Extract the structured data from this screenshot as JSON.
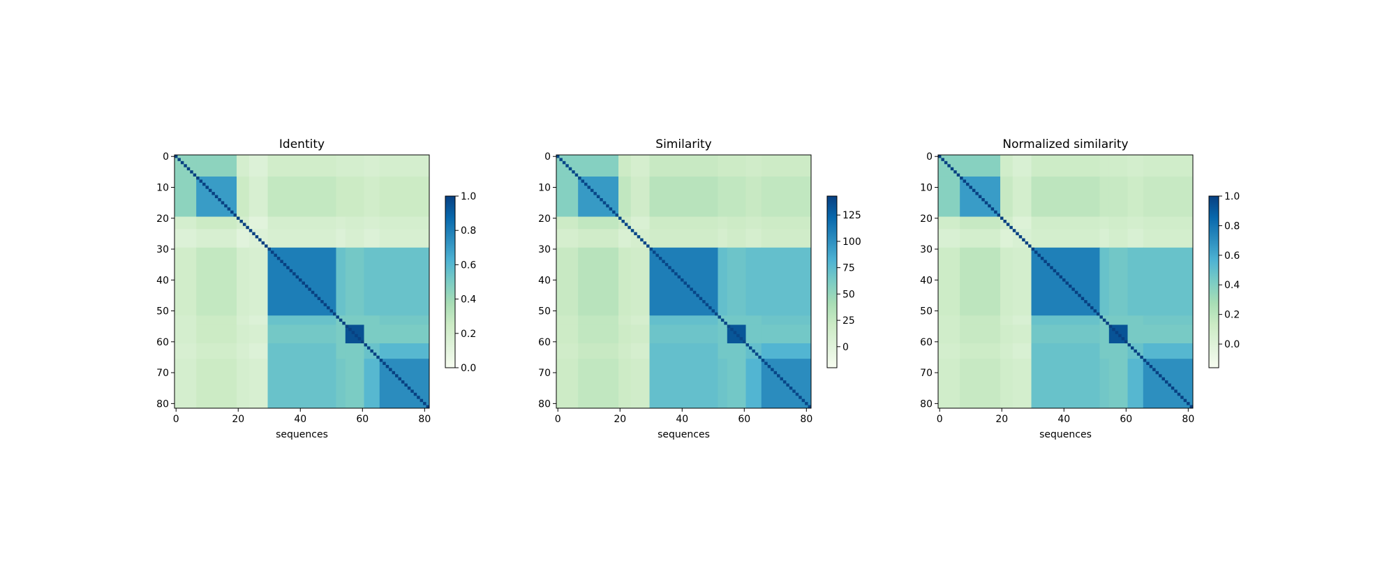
{
  "chart_data": [
    {
      "type": "heatmap",
      "title": "Identity",
      "xlabel": "sequences",
      "colormap": "GnBu",
      "xlim": [
        -0.5,
        81.5
      ],
      "ylim": [
        81.5,
        -0.5
      ],
      "xticks": [
        0,
        20,
        40,
        60,
        80
      ],
      "yticks": [
        0,
        10,
        20,
        30,
        40,
        50,
        60,
        70,
        80
      ],
      "bins": [
        -0.5,
        6.5,
        19.5,
        23.5,
        29.5,
        51.5,
        54.5,
        60.5,
        65.5,
        81.5
      ],
      "values": [
        [
          0.45,
          0.45,
          0.2,
          0.15,
          0.22,
          0.2,
          0.2,
          0.18,
          0.2
        ],
        [
          0.45,
          0.7,
          0.25,
          0.18,
          0.28,
          0.25,
          0.25,
          0.22,
          0.25
        ],
        [
          0.2,
          0.25,
          0.2,
          0.12,
          0.2,
          0.18,
          0.2,
          0.18,
          0.2
        ],
        [
          0.15,
          0.18,
          0.12,
          0.15,
          0.18,
          0.15,
          0.18,
          0.15,
          0.18
        ],
        [
          0.22,
          0.28,
          0.2,
          0.18,
          0.8,
          0.55,
          0.52,
          0.55,
          0.55
        ],
        [
          0.2,
          0.25,
          0.18,
          0.15,
          0.55,
          0.5,
          0.5,
          0.5,
          0.52
        ],
        [
          0.2,
          0.25,
          0.2,
          0.18,
          0.52,
          0.5,
          0.95,
          0.5,
          0.5
        ],
        [
          0.18,
          0.22,
          0.18,
          0.15,
          0.55,
          0.5,
          0.5,
          0.55,
          0.6
        ],
        [
          0.2,
          0.25,
          0.2,
          0.18,
          0.55,
          0.52,
          0.5,
          0.6,
          0.75
        ]
      ],
      "diagonal": [
        1,
        1,
        1,
        1,
        1,
        1,
        1,
        1,
        1,
        1,
        1,
        1,
        1,
        1,
        1,
        1,
        1,
        1,
        1,
        1,
        1,
        1,
        1,
        1,
        1,
        1,
        1,
        1,
        1,
        1,
        1,
        1,
        1,
        1,
        1,
        1,
        1,
        1,
        1,
        1,
        1,
        1,
        1,
        1,
        1,
        1,
        1,
        1,
        1,
        1,
        1,
        1,
        1,
        1,
        1,
        1,
        1,
        1,
        1,
        1,
        1,
        1,
        1,
        1,
        1,
        1,
        1,
        1,
        1,
        1,
        1,
        1,
        1,
        1,
        1,
        1,
        1,
        1,
        1,
        1,
        1,
        1
      ],
      "clim": [
        0,
        1
      ],
      "cticks": [
        {
          "value": 0,
          "label": "0.0"
        },
        0.2,
        0.4,
        0.6,
        0.8,
        {
          "value": 1,
          "label": "1.0"
        }
      ]
    },
    {
      "type": "heatmap",
      "title": "Similarity",
      "xlabel": "sequences",
      "colormap": "GnBu",
      "xlim": [
        -0.5,
        81.5
      ],
      "ylim": [
        81.5,
        -0.5
      ],
      "xticks": [
        0,
        20,
        40,
        60,
        80
      ],
      "yticks": [
        0,
        10,
        20,
        30,
        40,
        50,
        60,
        70,
        80
      ],
      "bins": [
        -0.5,
        6.5,
        19.5,
        23.5,
        29.5,
        51.5,
        54.5,
        60.5,
        65.5,
        81.5
      ],
      "values": [
        [
          57,
          57,
          20,
          12,
          23,
          20,
          20,
          17,
          20
        ],
        [
          57,
          95,
          27,
          17,
          32,
          27,
          27,
          23,
          27
        ],
        [
          20,
          27,
          20,
          8,
          20,
          17,
          20,
          17,
          20
        ],
        [
          12,
          17,
          8,
          12,
          17,
          12,
          17,
          12,
          17
        ],
        [
          23,
          32,
          20,
          17,
          110,
          72,
          68,
          72,
          72
        ],
        [
          20,
          27,
          17,
          12,
          72,
          65,
          65,
          65,
          68
        ],
        [
          20,
          27,
          20,
          17,
          68,
          65,
          132,
          65,
          65
        ],
        [
          17,
          23,
          17,
          12,
          72,
          65,
          65,
          72,
          80
        ],
        [
          20,
          27,
          20,
          17,
          72,
          68,
          65,
          80,
          102
        ]
      ],
      "diagonal": [
        140,
        140,
        140,
        140,
        140,
        140,
        140,
        140,
        140,
        140,
        140,
        140,
        140,
        140,
        140,
        140,
        140,
        140,
        140,
        140,
        140,
        140,
        140,
        140,
        140,
        140,
        140,
        140,
        140,
        140,
        140,
        140,
        140,
        140,
        140,
        140,
        140,
        140,
        140,
        140,
        140,
        140,
        140,
        140,
        140,
        140,
        140,
        140,
        140,
        140,
        140,
        140,
        140,
        140,
        140,
        140,
        140,
        140,
        140,
        140,
        140,
        140,
        140,
        140,
        140,
        140,
        140,
        140,
        140,
        140,
        140,
        140,
        140,
        140,
        140,
        140,
        140,
        140,
        140,
        140,
        140,
        140
      ],
      "clim": [
        -20,
        143
      ],
      "cticks": [
        0,
        25,
        50,
        75,
        100,
        125
      ]
    },
    {
      "type": "heatmap",
      "title": "Normalized similarity",
      "xlabel": "sequences",
      "colormap": "GnBu",
      "xlim": [
        -0.5,
        81.5
      ],
      "ylim": [
        81.5,
        -0.5
      ],
      "xticks": [
        0,
        20,
        40,
        60,
        80
      ],
      "yticks": [
        0,
        10,
        20,
        30,
        40,
        50,
        60,
        70,
        80
      ],
      "bins": [
        -0.5,
        6.5,
        19.5,
        23.5,
        29.5,
        51.5,
        54.5,
        60.5,
        65.5,
        81.5
      ],
      "values": [
        [
          0.38,
          0.38,
          0.1,
          0.04,
          0.12,
          0.1,
          0.1,
          0.08,
          0.1
        ],
        [
          0.38,
          0.65,
          0.15,
          0.08,
          0.19,
          0.15,
          0.15,
          0.12,
          0.15
        ],
        [
          0.1,
          0.15,
          0.1,
          0.01,
          0.1,
          0.08,
          0.1,
          0.08,
          0.1
        ],
        [
          0.04,
          0.08,
          0.01,
          0.04,
          0.08,
          0.04,
          0.08,
          0.04,
          0.08
        ],
        [
          0.12,
          0.19,
          0.1,
          0.08,
          0.76,
          0.48,
          0.45,
          0.48,
          0.48
        ],
        [
          0.1,
          0.15,
          0.08,
          0.04,
          0.48,
          0.43,
          0.43,
          0.43,
          0.45
        ],
        [
          0.1,
          0.15,
          0.1,
          0.08,
          0.45,
          0.43,
          0.93,
          0.43,
          0.43
        ],
        [
          0.08,
          0.12,
          0.08,
          0.04,
          0.48,
          0.43,
          0.43,
          0.48,
          0.54
        ],
        [
          0.1,
          0.15,
          0.1,
          0.08,
          0.48,
          0.45,
          0.43,
          0.54,
          0.7
        ]
      ],
      "diagonal": [
        1,
        1,
        1,
        1,
        1,
        1,
        1,
        1,
        1,
        1,
        1,
        1,
        1,
        1,
        1,
        1,
        1,
        1,
        1,
        1,
        1,
        1,
        1,
        1,
        1,
        1,
        1,
        1,
        1,
        1,
        1,
        1,
        1,
        1,
        1,
        1,
        1,
        1,
        1,
        1,
        1,
        1,
        1,
        1,
        1,
        1,
        1,
        1,
        1,
        1,
        1,
        1,
        1,
        1,
        1,
        1,
        1,
        1,
        1,
        1,
        1,
        1,
        1,
        1,
        1,
        1,
        1,
        1,
        1,
        1,
        1,
        1,
        1,
        1,
        1,
        1,
        1,
        1,
        1,
        1,
        1,
        1
      ],
      "clim": [
        -0.16,
        1
      ],
      "cticks": [
        {
          "value": 0,
          "label": "0.0"
        },
        0.2,
        0.4,
        0.6,
        0.8,
        {
          "value": 1,
          "label": "1.0"
        }
      ]
    }
  ]
}
